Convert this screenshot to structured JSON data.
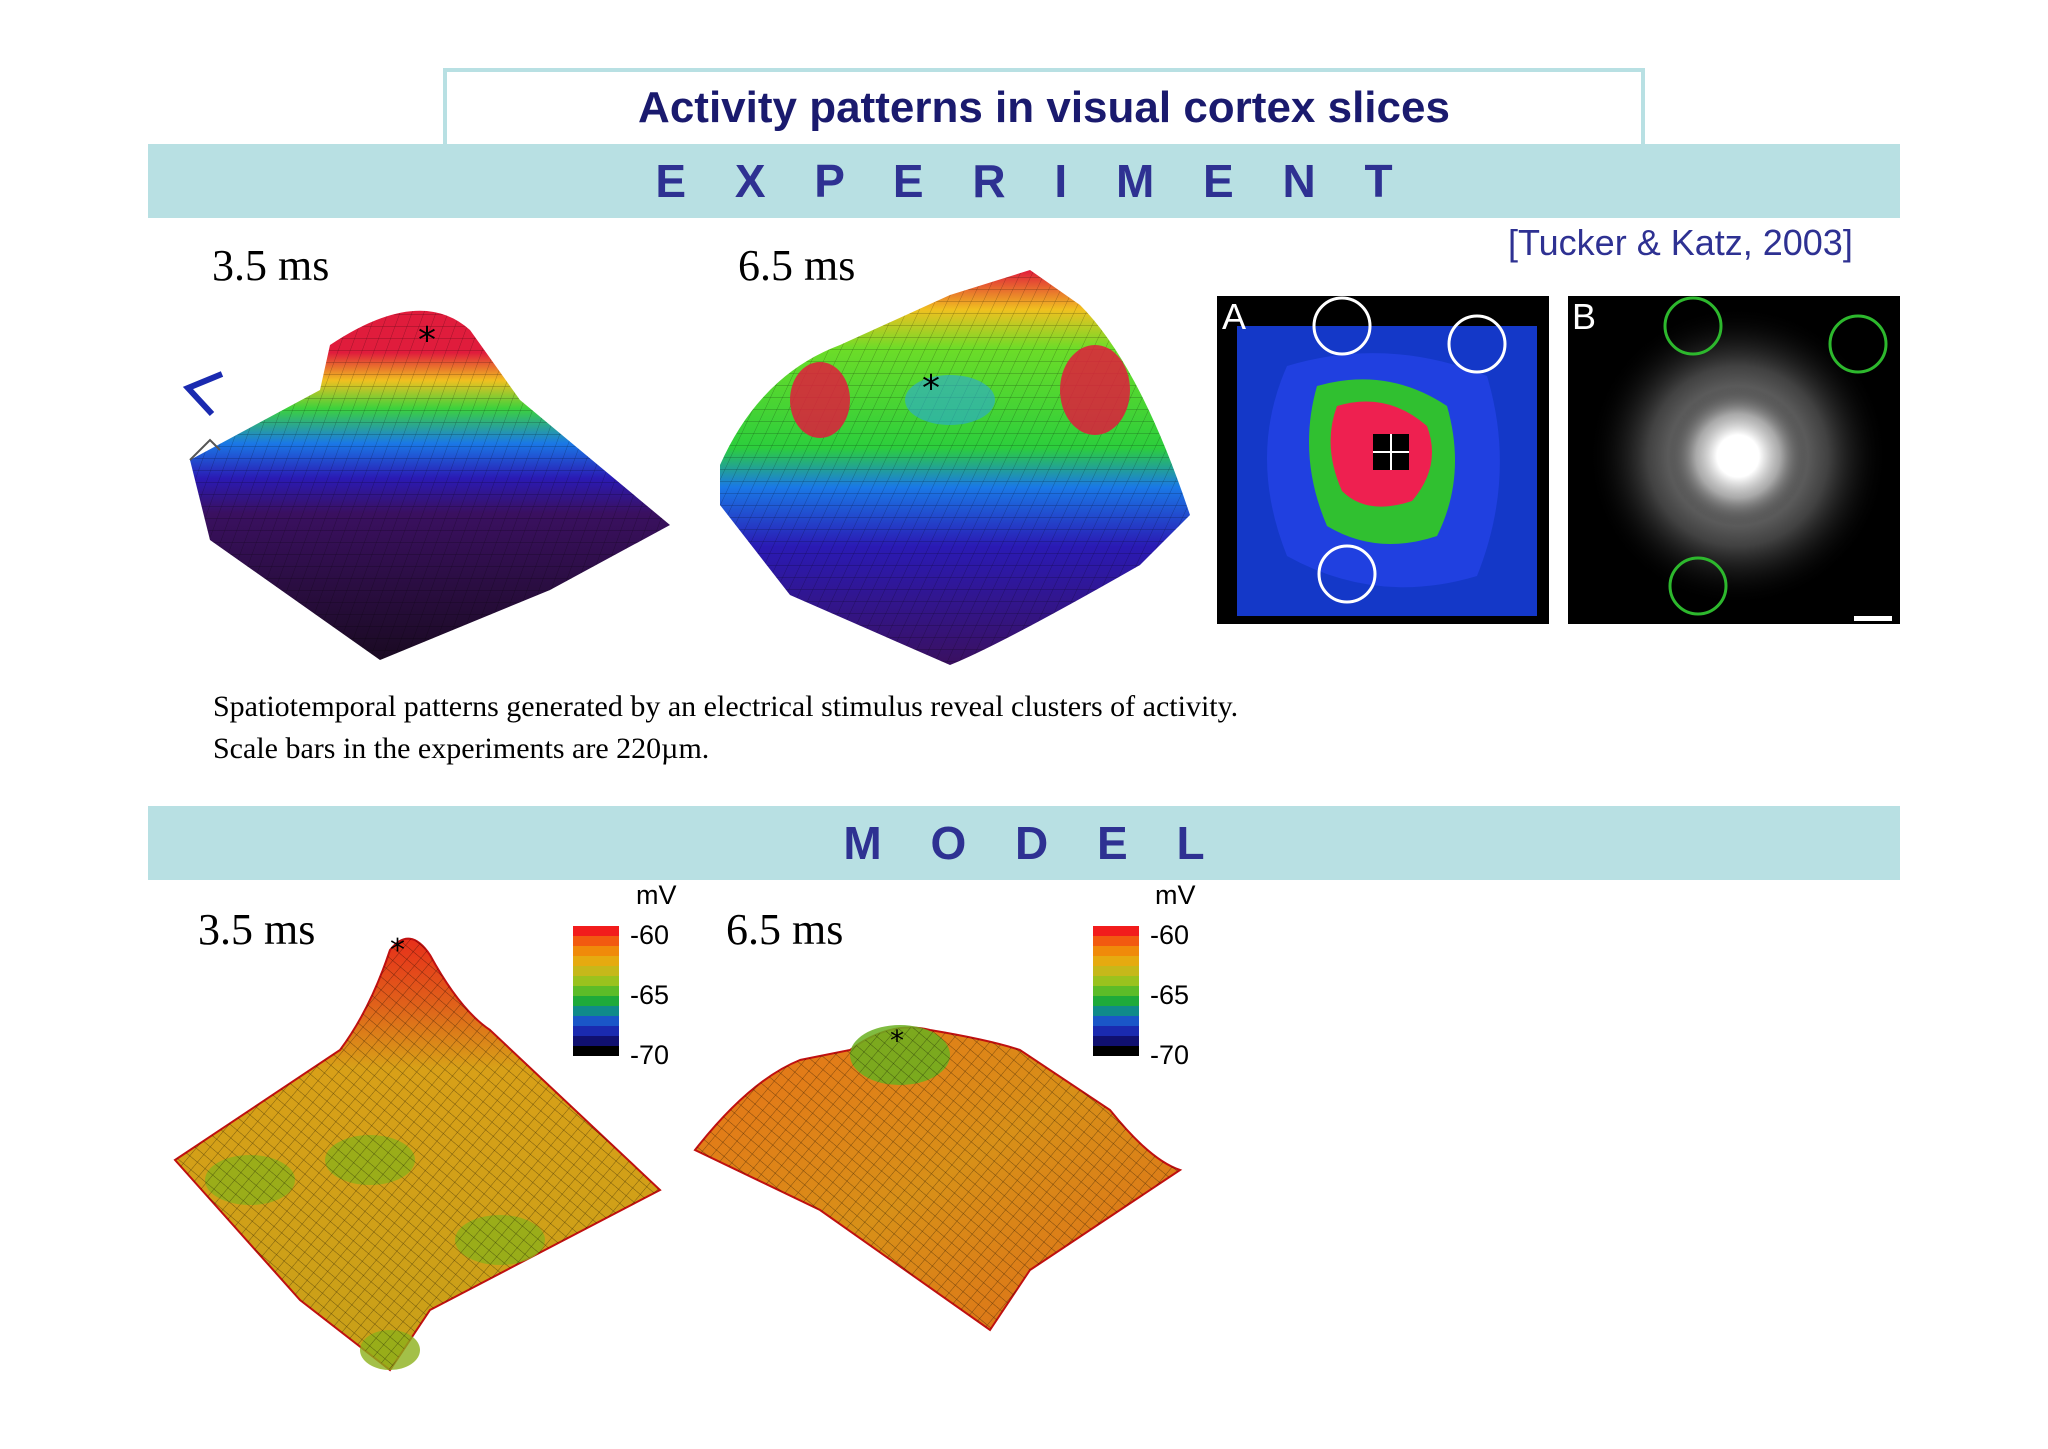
{
  "title": "Activity patterns in visual cortex slices",
  "experiment": {
    "heading": "E X P E R I M E N T",
    "citation": "[Tucker & Katz, 2003]",
    "time_labels": [
      "3.5 ms",
      "6.5 ms"
    ],
    "panel_letters": [
      "A",
      "B"
    ],
    "caption_lines": [
      "Spatiotemporal patterns generated by an electrical stimulus reveal clusters of activity.",
      "Scale bars in the experiments are 220µm."
    ]
  },
  "model": {
    "heading": "M O D E L",
    "time_labels": [
      "3.5 ms",
      "6.5 ms"
    ],
    "colorbar": {
      "unit": "mV",
      "ticks": [
        "-60",
        "-65",
        "-70"
      ],
      "colors": [
        "#f21c1c",
        "#f25a10",
        "#f08a0a",
        "#e6aa10",
        "#c6b81a",
        "#9ac21e",
        "#5cbc28",
        "#1eaa3a",
        "#108a8a",
        "#1a56c8",
        "#1a2ab0",
        "#101070",
        "#000000"
      ]
    }
  },
  "colors": {
    "band": "#b8e0e3",
    "heading_text": "#2e3192",
    "title_text": "#1a1a6e"
  }
}
